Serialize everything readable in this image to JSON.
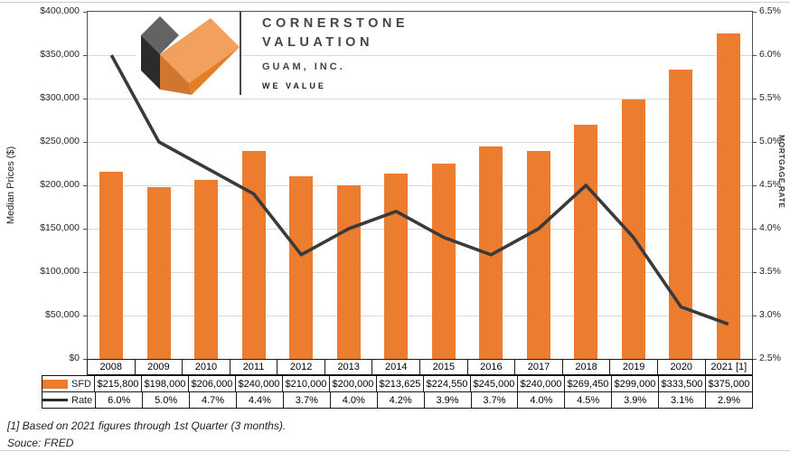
{
  "report": {
    "footnote": "[1] Based on 2021 figures through 1st Quarter (3 months).",
    "source": "Souce: FRED"
  },
  "logo": {
    "name_line1": "CORNERSTONE",
    "name_line2": "VALUATION",
    "subtitle": "GUAM, INC.",
    "tagline": "WE VALUE",
    "mark": "isometric-heart-of-two-cubes"
  },
  "colors": {
    "bar_orange": "#EC7D2F",
    "line_dark": "#3A3A3A",
    "grid_gray": "#D9D9D9",
    "tagline_orange": "#F08A42",
    "logo_gray_top": "#636363",
    "logo_gray_dark": "#2B2B2B",
    "logo_orange_light": "#F2A05E",
    "logo_orange_mid": "#D2752E",
    "logo_orange_dark": "#E67E28"
  },
  "chart_data": {
    "type": "bar",
    "subtype": "combo-bar-line",
    "title": "",
    "categories": [
      "2008",
      "2009",
      "2010",
      "2011",
      "2012",
      "2013",
      "2014",
      "2015",
      "2016",
      "2017",
      "2018",
      "2019",
      "2020",
      "2021 [1]"
    ],
    "series": [
      {
        "name": "SFD",
        "type": "bar",
        "axis": "left",
        "values": [
          215800,
          198000,
          206000,
          240000,
          210000,
          200000,
          213625,
          224550,
          245000,
          240000,
          269450,
          299000,
          333500,
          375000
        ],
        "labels": [
          "$215,800",
          "$198,000",
          "$206,000",
          "$240,000",
          "$210,000",
          "$200,000",
          "$213,625",
          "$224,550",
          "$245,000",
          "$240,000",
          "$269,450",
          "$299,000",
          "$333,500",
          "$375,000"
        ]
      },
      {
        "name": "Rate",
        "type": "line",
        "axis": "right",
        "values": [
          6.0,
          5.0,
          4.7,
          4.4,
          3.7,
          4.0,
          4.2,
          3.9,
          3.7,
          4.0,
          4.5,
          3.9,
          3.1,
          2.9
        ],
        "labels": [
          "6.0%",
          "5.0%",
          "4.7%",
          "4.4%",
          "3.7%",
          "4.0%",
          "4.2%",
          "3.9%",
          "3.7%",
          "4.0%",
          "4.5%",
          "3.9%",
          "3.1%",
          "2.9%"
        ]
      }
    ],
    "left_axis": {
      "label": "Median Prices ($)",
      "min": 0,
      "max": 400000,
      "step": 50000,
      "ticks": [
        "$400,000",
        "$350,000",
        "$300,000",
        "$250,000",
        "$200,000",
        "$150,000",
        "$100,000",
        "$50,000",
        "$0"
      ]
    },
    "right_axis": {
      "label": "MORTGAGE RATE",
      "min": 2.5,
      "max": 6.5,
      "step": 0.5,
      "ticks": [
        "6.5%",
        "6.0%",
        "5.5%",
        "5.0%",
        "4.5%",
        "4.0%",
        "3.5%",
        "3.0%",
        "2.5%"
      ]
    },
    "grid": true,
    "legend_position": "table-left-column"
  }
}
